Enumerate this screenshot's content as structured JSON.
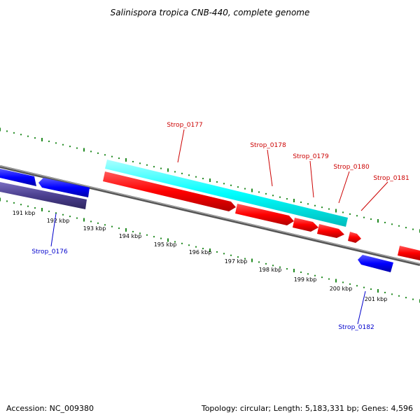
{
  "title": "Salinispora tropica CNB-440, complete genome",
  "footer": {
    "accession": "Accession: NC_009380",
    "summary": "Topology: circular; Length: 5,183,331 bp; Genes: 4,596"
  },
  "colors": {
    "forward_gene": "#ff0000",
    "reverse_gene": "#0000ff",
    "rna_or_feature": "#00ffff",
    "dark_feature": "#4b3f8f",
    "backbone": "#808080",
    "tick": "#228b22",
    "forward_label": "#cc0000",
    "reverse_label": "#0000cc"
  },
  "scale_labels": [
    "191 kbp",
    "192 kbp",
    "193 kbp",
    "194 kbp",
    "195 kbp",
    "196 kbp",
    "197 kbp",
    "198 kbp",
    "199 kbp",
    "200 kbp",
    "201 kbp"
  ],
  "gene_labels": [
    {
      "name": "Strop_0177",
      "strand": "forward"
    },
    {
      "name": "Strop_0178",
      "strand": "forward"
    },
    {
      "name": "Strop_0179",
      "strand": "forward"
    },
    {
      "name": "Strop_0180",
      "strand": "forward"
    },
    {
      "name": "Strop_0181",
      "strand": "forward"
    },
    {
      "name": "Strop_0176",
      "strand": "reverse"
    },
    {
      "name": "Strop_0182",
      "strand": "reverse"
    }
  ]
}
